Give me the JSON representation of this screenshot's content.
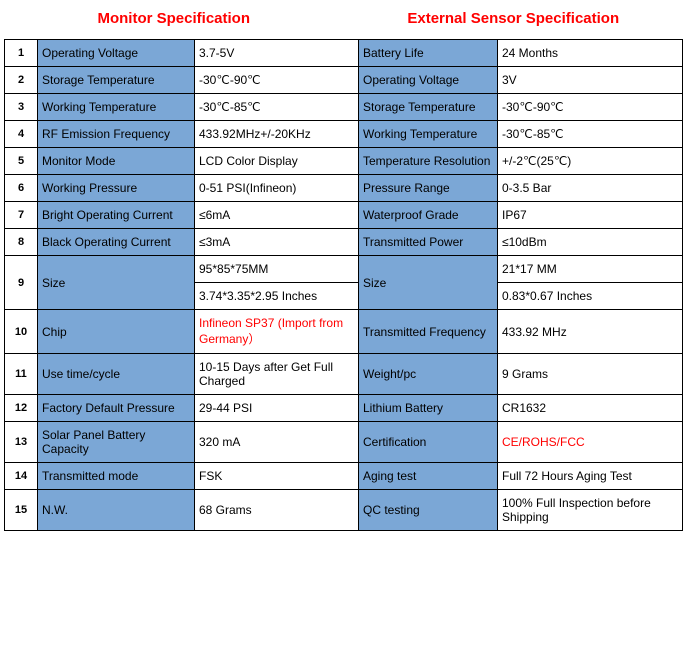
{
  "headers": {
    "left": "Monitor Specification",
    "right": "External Sensor Specification"
  },
  "colors": {
    "header_text": "#ff0000",
    "label_bg": "#7ba7d6",
    "value_bg": "#ffffff",
    "border": "#000000",
    "highlight_text": "#ff0000"
  },
  "rows": [
    {
      "n": "1",
      "ml": "Operating Voltage",
      "mv": "3.7-5V",
      "sl": "Battery Life",
      "sv": "24 Months"
    },
    {
      "n": "2",
      "ml": "Storage Temperature",
      "mv": "-30℃-90℃",
      "sl": "Operating Voltage",
      "sv": "3V"
    },
    {
      "n": "3",
      "ml": "Working Temperature",
      "mv": "-30℃-85℃",
      "sl": "Storage Temperature",
      "sv": "-30℃-90℃"
    },
    {
      "n": "4",
      "ml": "RF Emission Frequency",
      "mv": "433.92MHz+/-20KHz",
      "sl": "Working Temperature",
      "sv": "-30℃-85℃"
    },
    {
      "n": "5",
      "ml": "Monitor Mode",
      "mv": "LCD Color Display",
      "sl": "Temperature Resolution",
      "sv": "+/-2℃(25℃)"
    },
    {
      "n": "6",
      "ml": "Working Pressure",
      "mv": "0-51 PSI(Infineon)",
      "sl": "Pressure Range",
      "sv": "0-3.5 Bar"
    },
    {
      "n": "7",
      "ml": "Bright Operating Current",
      "mv": "≤6mA",
      "sl": "Waterproof Grade",
      "sv": "IP67"
    },
    {
      "n": "8",
      "ml": "Black Operating Current",
      "mv": "≤3mA",
      "sl": "Transmitted Power",
      "sv": "≤10dBm"
    }
  ],
  "size_row": {
    "n": "9",
    "ml": "Size",
    "mv1": "95*85*75MM",
    "mv2": "3.74*3.35*2.95 Inches",
    "sl": "Size",
    "sv1": "21*17 MM",
    "sv2": "0.83*0.67 Inches"
  },
  "rows2": [
    {
      "n": "10",
      "ml": "Chip",
      "mv": "Infineon SP37 (Import from Germany）",
      "mv_red": true,
      "sl": "Transmitted Frequency",
      "sv": "433.92 MHz"
    },
    {
      "n": "11",
      "ml": "Use time/cycle",
      "mv": "10-15 Days after Get Full Charged",
      "sl": "Weight/pc",
      "sv": "9 Grams"
    },
    {
      "n": "12",
      "ml": "Factory Default Pressure",
      "mv": "29-44 PSI",
      "sl": "Lithium Battery",
      "sv": "CR1632"
    },
    {
      "n": "13",
      "ml": "Solar Panel Battery Capacity",
      "mv": "320 mA",
      "sl": "Certification",
      "sv": "CE/ROHS/FCC",
      "sv_red": true
    },
    {
      "n": "14",
      "ml": "Transmitted mode",
      "mv": "FSK",
      "sl": "Aging test",
      "sv": "Full 72 Hours Aging Test"
    },
    {
      "n": "15",
      "ml": "N.W.",
      "mv": "68 Grams",
      "sl": "QC testing",
      "sv": "100% Full Inspection before Shipping"
    }
  ]
}
